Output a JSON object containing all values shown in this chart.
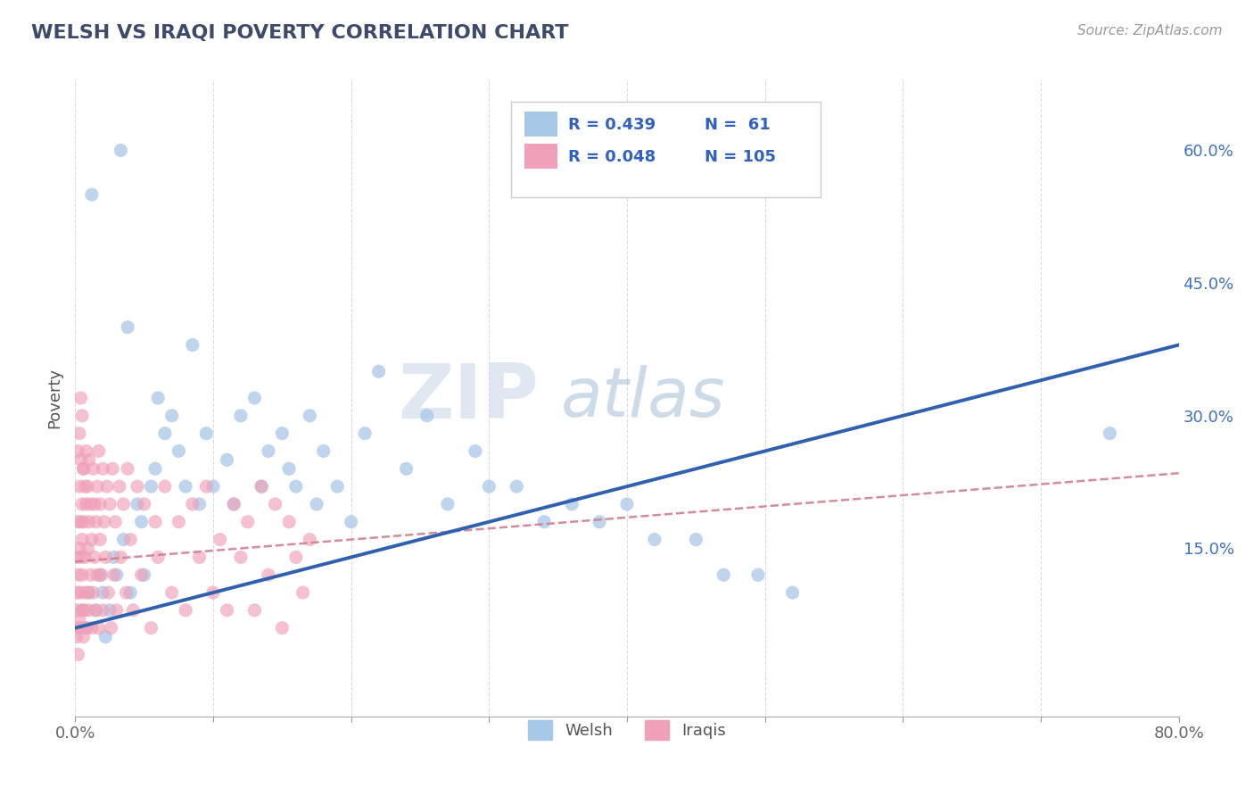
{
  "title": "WELSH VS IRAQI POVERTY CORRELATION CHART",
  "source": "Source: ZipAtlas.com",
  "ylabel": "Poverty",
  "legend_welsh_label": "Welsh",
  "legend_iraqi_label": "Iraqis",
  "welsh_R": 0.439,
  "welsh_N": 61,
  "iraqi_R": 0.048,
  "iraqi_N": 105,
  "xlim": [
    0.0,
    0.8
  ],
  "ylim": [
    -0.04,
    0.68
  ],
  "x_ticks": [
    0.0,
    0.1,
    0.2,
    0.3,
    0.4,
    0.5,
    0.6,
    0.7,
    0.8
  ],
  "x_tick_labels": [
    "0.0%",
    "",
    "",
    "",
    "",
    "",
    "",
    "",
    "80.0%"
  ],
  "y_ticks_right": [
    0.15,
    0.3,
    0.45,
    0.6
  ],
  "y_tick_labels_right": [
    "15.0%",
    "30.0%",
    "45.0%",
    "60.0%"
  ],
  "welsh_color": "#A8C8E8",
  "iraqi_color": "#F0A0B8",
  "welsh_line_color": "#3060B0",
  "iraqi_line_color": "#D08090",
  "background_color": "#FFFFFF",
  "grid_color": "#CCCCCC",
  "title_color": "#3D4A6B",
  "watermark_color_zip": "#C8D4E4",
  "watermark_color_atlas": "#8AAAC8",
  "legend_text_color": "#3060C0",
  "welsh_scatter_x": [
    0.005,
    0.008,
    0.01,
    0.012,
    0.015,
    0.018,
    0.02,
    0.022,
    0.025,
    0.028,
    0.03,
    0.033,
    0.035,
    0.038,
    0.04,
    0.045,
    0.048,
    0.05,
    0.055,
    0.058,
    0.06,
    0.065,
    0.07,
    0.075,
    0.08,
    0.085,
    0.09,
    0.095,
    0.1,
    0.11,
    0.115,
    0.12,
    0.13,
    0.135,
    0.14,
    0.15,
    0.155,
    0.16,
    0.17,
    0.175,
    0.18,
    0.19,
    0.2,
    0.21,
    0.22,
    0.24,
    0.255,
    0.27,
    0.29,
    0.3,
    0.32,
    0.34,
    0.36,
    0.38,
    0.4,
    0.42,
    0.45,
    0.47,
    0.495,
    0.52,
    0.75
  ],
  "welsh_scatter_y": [
    0.08,
    0.06,
    0.1,
    0.55,
    0.08,
    0.12,
    0.1,
    0.05,
    0.08,
    0.14,
    0.12,
    0.6,
    0.16,
    0.4,
    0.1,
    0.2,
    0.18,
    0.12,
    0.22,
    0.24,
    0.32,
    0.28,
    0.3,
    0.26,
    0.22,
    0.38,
    0.2,
    0.28,
    0.22,
    0.25,
    0.2,
    0.3,
    0.32,
    0.22,
    0.26,
    0.28,
    0.24,
    0.22,
    0.3,
    0.2,
    0.26,
    0.22,
    0.18,
    0.28,
    0.35,
    0.24,
    0.3,
    0.2,
    0.26,
    0.22,
    0.22,
    0.18,
    0.2,
    0.18,
    0.2,
    0.16,
    0.16,
    0.12,
    0.12,
    0.1,
    0.28
  ],
  "iraqi_scatter_x": [
    0.001,
    0.001,
    0.001,
    0.001,
    0.002,
    0.002,
    0.002,
    0.002,
    0.003,
    0.003,
    0.003,
    0.003,
    0.004,
    0.004,
    0.004,
    0.004,
    0.005,
    0.005,
    0.005,
    0.005,
    0.006,
    0.006,
    0.006,
    0.006,
    0.007,
    0.007,
    0.007,
    0.008,
    0.008,
    0.008,
    0.009,
    0.009,
    0.009,
    0.01,
    0.01,
    0.01,
    0.011,
    0.011,
    0.012,
    0.012,
    0.013,
    0.013,
    0.014,
    0.014,
    0.015,
    0.015,
    0.016,
    0.016,
    0.017,
    0.017,
    0.018,
    0.018,
    0.019,
    0.02,
    0.02,
    0.021,
    0.022,
    0.023,
    0.024,
    0.025,
    0.026,
    0.027,
    0.028,
    0.029,
    0.03,
    0.032,
    0.033,
    0.035,
    0.037,
    0.038,
    0.04,
    0.042,
    0.045,
    0.048,
    0.05,
    0.055,
    0.058,
    0.06,
    0.065,
    0.07,
    0.075,
    0.08,
    0.085,
    0.09,
    0.095,
    0.1,
    0.105,
    0.11,
    0.115,
    0.12,
    0.125,
    0.13,
    0.135,
    0.14,
    0.145,
    0.15,
    0.155,
    0.16,
    0.165,
    0.17,
    0.003,
    0.004,
    0.002,
    0.005,
    0.006
  ],
  "iraqi_scatter_y": [
    0.1,
    0.14,
    0.08,
    0.05,
    0.12,
    0.18,
    0.06,
    0.03,
    0.15,
    0.1,
    0.22,
    0.07,
    0.14,
    0.18,
    0.06,
    0.25,
    0.12,
    0.08,
    0.2,
    0.16,
    0.24,
    0.1,
    0.18,
    0.05,
    0.22,
    0.14,
    0.08,
    0.2,
    0.06,
    0.26,
    0.15,
    0.1,
    0.22,
    0.18,
    0.08,
    0.25,
    0.12,
    0.2,
    0.16,
    0.06,
    0.24,
    0.1,
    0.2,
    0.14,
    0.18,
    0.08,
    0.22,
    0.12,
    0.26,
    0.06,
    0.2,
    0.16,
    0.12,
    0.24,
    0.08,
    0.18,
    0.14,
    0.22,
    0.1,
    0.2,
    0.06,
    0.24,
    0.12,
    0.18,
    0.08,
    0.22,
    0.14,
    0.2,
    0.1,
    0.24,
    0.16,
    0.08,
    0.22,
    0.12,
    0.2,
    0.06,
    0.18,
    0.14,
    0.22,
    0.1,
    0.18,
    0.08,
    0.2,
    0.14,
    0.22,
    0.1,
    0.16,
    0.08,
    0.2,
    0.14,
    0.18,
    0.08,
    0.22,
    0.12,
    0.2,
    0.06,
    0.18,
    0.14,
    0.1,
    0.16,
    0.28,
    0.32,
    0.26,
    0.3,
    0.24
  ],
  "welsh_line_x0": 0.0,
  "welsh_line_y0": 0.06,
  "welsh_line_x1": 0.8,
  "welsh_line_y1": 0.38,
  "iraqi_line_x0": 0.0,
  "iraqi_line_y0": 0.135,
  "iraqi_line_x1": 0.8,
  "iraqi_line_y1": 0.235
}
